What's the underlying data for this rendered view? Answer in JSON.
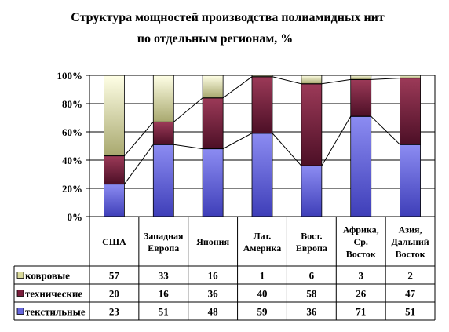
{
  "title": {
    "line1": "Структура мощностей производства полиамидных нит",
    "line2": "по отдельным регионам, %"
  },
  "colors": {
    "kovrovye": "#EFEFB3",
    "tekhnicheskie": "#8A2C47",
    "tekstilnye": "#6E6EE4",
    "kovrovye_swatch": "#D9D99A",
    "tekhnicheskie_swatch": "#7A1E3C",
    "tekstilnye_swatch": "#6666DD"
  },
  "chart_data": {
    "type": "bar",
    "stacked": "percent",
    "categories": [
      [
        "США"
      ],
      [
        "Западная",
        "Европа"
      ],
      [
        "Япония"
      ],
      [
        "Лат.",
        "Америка"
      ],
      [
        "Вост.",
        "Европа"
      ],
      [
        "Африка,",
        "Ср.",
        "Восток"
      ],
      [
        "Азия,",
        "Дальний",
        "Восток"
      ]
    ],
    "series": [
      {
        "name": "текстильные",
        "values": [
          23,
          51,
          48,
          59,
          36,
          71,
          51
        ]
      },
      {
        "name": "технические",
        "values": [
          20,
          16,
          36,
          40,
          58,
          26,
          47
        ]
      },
      {
        "name": "ковровые",
        "values": [
          57,
          33,
          16,
          1,
          6,
          3,
          2
        ]
      }
    ],
    "table_order": [
      2,
      1,
      0
    ],
    "series_lines": true,
    "y_ticks": [
      "0%",
      "20%",
      "40%",
      "60%",
      "80%",
      "100%"
    ],
    "ylim": [
      0,
      100
    ],
    "grid": true,
    "legend": "data-table"
  }
}
